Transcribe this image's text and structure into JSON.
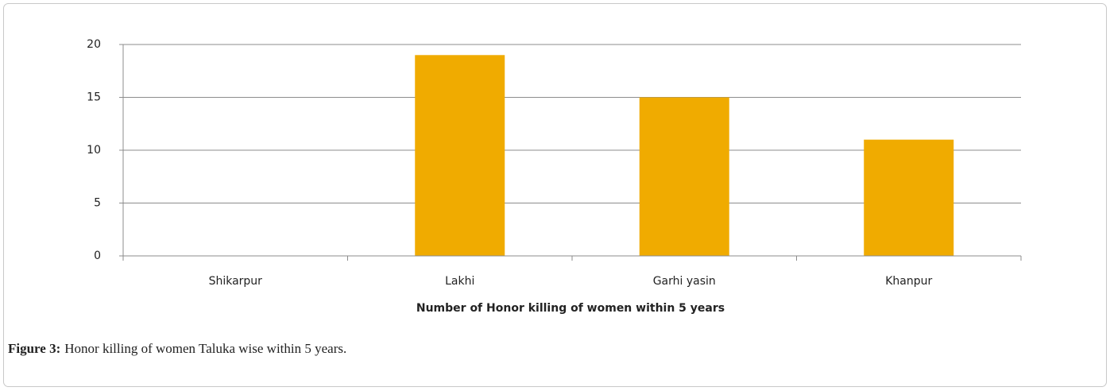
{
  "chart_data": {
    "type": "bar",
    "x_label": "Number of Honor killing of women within 5 years",
    "categories": [
      "Shikarpur",
      "Lakhi",
      "Garhi yasin",
      "Khanpur"
    ],
    "values": [
      0,
      19,
      15,
      11
    ],
    "color": "#f0ab00",
    "ylim": [
      0,
      20
    ],
    "yticks": [
      0,
      5,
      10,
      15,
      20
    ],
    "grid": true
  },
  "caption": {
    "label": "Figure 3:",
    "text": "Honor killing of women Taluka wise within 5 years."
  }
}
